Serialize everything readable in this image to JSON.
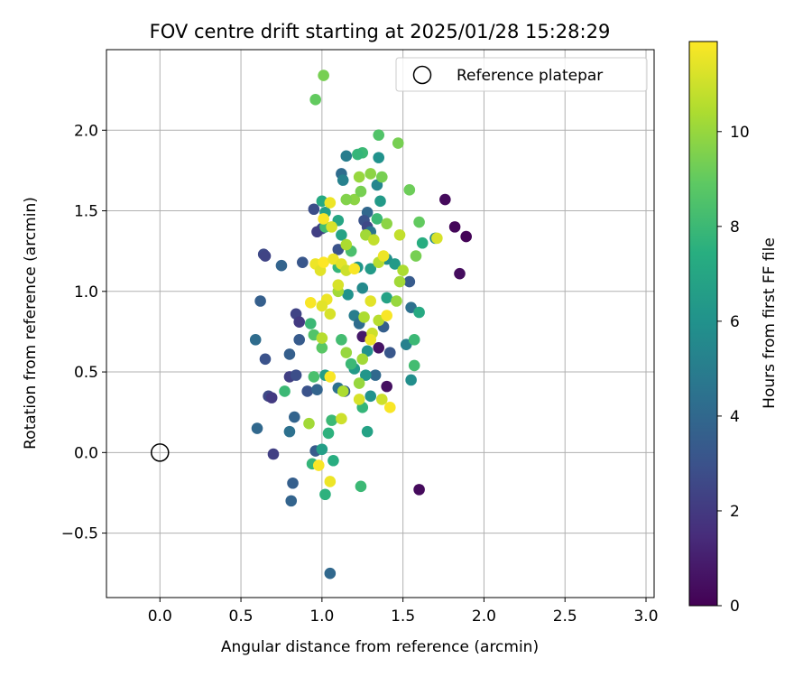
{
  "chart_data": {
    "type": "scatter",
    "title": "FOV centre drift starting at 2025/01/28 15:28:29",
    "xlabel": "Angular distance from reference (arcmin)",
    "ylabel": "Rotation from reference (arcmin)",
    "xlim": [
      -0.33,
      3.05
    ],
    "ylim": [
      -0.9,
      2.5
    ],
    "xticks": [
      0.0,
      0.5,
      1.0,
      1.5,
      2.0,
      2.5,
      3.0
    ],
    "xtick_labels": [
      "0.0",
      "0.5",
      "1.0",
      "1.5",
      "2.0",
      "2.5",
      "3.0"
    ],
    "yticks": [
      -0.5,
      0.0,
      0.5,
      1.0,
      1.5,
      2.0
    ],
    "ytick_labels": [
      "−0.5",
      "0.0",
      "0.5",
      "1.0",
      "1.5",
      "2.0"
    ],
    "grid": true,
    "legend": {
      "position": "upper-right",
      "entries": [
        "Reference platepar"
      ]
    },
    "reference_point": {
      "name": "Reference platepar",
      "x": 0.0,
      "y": 0.0,
      "marker": "open-circle"
    },
    "colorbar": {
      "label": "Hours from first FF file",
      "colormap": "viridis",
      "range": [
        0,
        11.9
      ],
      "ticks": [
        0,
        2,
        4,
        6,
        8,
        10
      ],
      "tick_labels": [
        "0",
        "2",
        "4",
        "6",
        "8",
        "10"
      ]
    },
    "series": [
      {
        "color_by": "hours",
        "points": [
          {
            "x": 1.76,
            "y": 1.57,
            "h": 0.3
          },
          {
            "x": 1.82,
            "y": 1.4,
            "h": 0.2
          },
          {
            "x": 1.89,
            "y": 1.34,
            "h": 0.1
          },
          {
            "x": 1.85,
            "y": 1.11,
            "h": 0.4
          },
          {
            "x": 1.6,
            "y": -0.23,
            "h": 0.3
          },
          {
            "x": 1.4,
            "y": 0.41,
            "h": 0.5
          },
          {
            "x": 1.35,
            "y": 0.65,
            "h": 0.6
          },
          {
            "x": 1.25,
            "y": 0.72,
            "h": 0.8
          },
          {
            "x": 0.95,
            "y": 1.51,
            "h": 2.8
          },
          {
            "x": 1.0,
            "y": 1.39,
            "h": 2.5
          },
          {
            "x": 0.97,
            "y": 1.37,
            "h": 2.2
          },
          {
            "x": 1.1,
            "y": 1.26,
            "h": 3.0
          },
          {
            "x": 0.64,
            "y": 1.23,
            "h": 2.6
          },
          {
            "x": 0.65,
            "y": 1.22,
            "h": 2.4
          },
          {
            "x": 0.75,
            "y": 1.16,
            "h": 3.8
          },
          {
            "x": 0.88,
            "y": 1.18,
            "h": 3.2
          },
          {
            "x": 0.62,
            "y": 0.94,
            "h": 3.6
          },
          {
            "x": 0.84,
            "y": 0.86,
            "h": 2.4
          },
          {
            "x": 0.86,
            "y": 0.81,
            "h": 2.0
          },
          {
            "x": 0.59,
            "y": 0.7,
            "h": 4.2
          },
          {
            "x": 0.65,
            "y": 0.58,
            "h": 3.0
          },
          {
            "x": 0.8,
            "y": 0.61,
            "h": 3.6
          },
          {
            "x": 0.86,
            "y": 0.7,
            "h": 3.4
          },
          {
            "x": 0.8,
            "y": 0.47,
            "h": 2.2
          },
          {
            "x": 0.84,
            "y": 0.48,
            "h": 2.8
          },
          {
            "x": 0.91,
            "y": 0.38,
            "h": 3.0
          },
          {
            "x": 0.97,
            "y": 0.39,
            "h": 3.8
          },
          {
            "x": 0.67,
            "y": 0.35,
            "h": 2.6
          },
          {
            "x": 0.69,
            "y": 0.34,
            "h": 2.0
          },
          {
            "x": 0.6,
            "y": 0.15,
            "h": 4.0
          },
          {
            "x": 0.8,
            "y": 0.13,
            "h": 4.4
          },
          {
            "x": 0.83,
            "y": 0.22,
            "h": 3.8
          },
          {
            "x": 0.7,
            "y": -0.01,
            "h": 2.2
          },
          {
            "x": 0.96,
            "y": 0.01,
            "h": 3.4
          },
          {
            "x": 0.82,
            "y": -0.19,
            "h": 3.6
          },
          {
            "x": 0.81,
            "y": -0.3,
            "h": 3.8
          },
          {
            "x": 1.05,
            "y": -0.75,
            "h": 4.0
          },
          {
            "x": 1.28,
            "y": 1.49,
            "h": 4.0
          },
          {
            "x": 1.26,
            "y": 1.44,
            "h": 3.0
          },
          {
            "x": 1.28,
            "y": 1.4,
            "h": 2.6
          },
          {
            "x": 1.3,
            "y": 1.37,
            "h": 4.6
          },
          {
            "x": 1.15,
            "y": 1.84,
            "h": 5.0
          },
          {
            "x": 1.12,
            "y": 1.73,
            "h": 4.2
          },
          {
            "x": 1.13,
            "y": 1.69,
            "h": 5.2
          },
          {
            "x": 1.34,
            "y": 1.66,
            "h": 5.4
          },
          {
            "x": 1.54,
            "y": 1.06,
            "h": 3.4
          },
          {
            "x": 1.38,
            "y": 0.78,
            "h": 3.6
          },
          {
            "x": 1.42,
            "y": 0.62,
            "h": 3.2
          },
          {
            "x": 1.33,
            "y": 0.48,
            "h": 4.0
          },
          {
            "x": 1.1,
            "y": 0.4,
            "h": 4.4
          },
          {
            "x": 1.14,
            "y": 0.38,
            "h": 3.6
          },
          {
            "x": 1.55,
            "y": 0.9,
            "h": 4.4
          },
          {
            "x": 1.2,
            "y": 0.85,
            "h": 5.0
          },
          {
            "x": 1.23,
            "y": 0.8,
            "h": 4.2
          },
          {
            "x": 1.35,
            "y": 1.83,
            "h": 6.0
          },
          {
            "x": 1.02,
            "y": 1.49,
            "h": 6.6
          },
          {
            "x": 1.0,
            "y": 1.56,
            "h": 7.2
          },
          {
            "x": 1.36,
            "y": 1.56,
            "h": 6.4
          },
          {
            "x": 1.1,
            "y": 1.44,
            "h": 7.0
          },
          {
            "x": 1.12,
            "y": 1.35,
            "h": 6.8
          },
          {
            "x": 1.22,
            "y": 1.15,
            "h": 6.2
          },
          {
            "x": 1.3,
            "y": 1.14,
            "h": 6.4
          },
          {
            "x": 1.4,
            "y": 1.2,
            "h": 5.8
          },
          {
            "x": 1.45,
            "y": 1.17,
            "h": 6.4
          },
          {
            "x": 1.25,
            "y": 1.02,
            "h": 5.6
          },
          {
            "x": 1.16,
            "y": 0.98,
            "h": 6.0
          },
          {
            "x": 1.4,
            "y": 0.96,
            "h": 6.8
          },
          {
            "x": 1.52,
            "y": 0.67,
            "h": 5.2
          },
          {
            "x": 1.28,
            "y": 0.63,
            "h": 6.0
          },
          {
            "x": 1.2,
            "y": 0.52,
            "h": 6.4
          },
          {
            "x": 1.27,
            "y": 0.48,
            "h": 6.2
          },
          {
            "x": 1.55,
            "y": 0.45,
            "h": 5.8
          },
          {
            "x": 1.3,
            "y": 0.35,
            "h": 6.0
          },
          {
            "x": 1.02,
            "y": 0.48,
            "h": 6.6
          },
          {
            "x": 1.62,
            "y": 1.3,
            "h": 7.4
          },
          {
            "x": 1.7,
            "y": 1.33,
            "h": 5.6
          },
          {
            "x": 1.6,
            "y": 0.87,
            "h": 7.2
          },
          {
            "x": 1.0,
            "y": 0.02,
            "h": 6.6
          },
          {
            "x": 1.28,
            "y": 0.13,
            "h": 6.8
          },
          {
            "x": 1.04,
            "y": 0.12,
            "h": 7.6
          },
          {
            "x": 1.25,
            "y": 1.86,
            "h": 8.0
          },
          {
            "x": 1.22,
            "y": 1.85,
            "h": 7.8
          },
          {
            "x": 1.02,
            "y": 1.4,
            "h": 8.2
          },
          {
            "x": 1.34,
            "y": 1.45,
            "h": 8.0
          },
          {
            "x": 1.18,
            "y": 1.25,
            "h": 8.4
          },
          {
            "x": 1.1,
            "y": 1.15,
            "h": 7.8
          },
          {
            "x": 1.12,
            "y": 0.7,
            "h": 8.2
          },
          {
            "x": 0.93,
            "y": 0.8,
            "h": 8.0
          },
          {
            "x": 0.95,
            "y": 0.73,
            "h": 8.6
          },
          {
            "x": 1.0,
            "y": 0.65,
            "h": 8.8
          },
          {
            "x": 1.18,
            "y": 0.55,
            "h": 8.0
          },
          {
            "x": 0.95,
            "y": 0.47,
            "h": 8.4
          },
          {
            "x": 0.77,
            "y": 0.38,
            "h": 8.0
          },
          {
            "x": 1.25,
            "y": 0.28,
            "h": 7.8
          },
          {
            "x": 1.24,
            "y": -0.21,
            "h": 8.0
          },
          {
            "x": 1.02,
            "y": -0.26,
            "h": 7.6
          },
          {
            "x": 0.94,
            "y": -0.07,
            "h": 7.8
          },
          {
            "x": 1.06,
            "y": 0.2,
            "h": 8.0
          },
          {
            "x": 1.07,
            "y": -0.05,
            "h": 7.4
          },
          {
            "x": 1.57,
            "y": 0.54,
            "h": 8.2
          },
          {
            "x": 1.57,
            "y": 0.7,
            "h": 8.0
          },
          {
            "x": 1.35,
            "y": 1.97,
            "h": 8.6
          },
          {
            "x": 1.47,
            "y": 1.92,
            "h": 9.4
          },
          {
            "x": 1.54,
            "y": 1.63,
            "h": 9.2
          },
          {
            "x": 1.6,
            "y": 1.43,
            "h": 9.0
          },
          {
            "x": 1.58,
            "y": 1.22,
            "h": 9.4
          },
          {
            "x": 1.01,
            "y": 2.34,
            "h": 9.4
          },
          {
            "x": 0.96,
            "y": 2.19,
            "h": 9.0
          },
          {
            "x": 1.3,
            "y": 1.73,
            "h": 9.8
          },
          {
            "x": 1.37,
            "y": 1.71,
            "h": 9.4
          },
          {
            "x": 1.23,
            "y": 1.71,
            "h": 10.0
          },
          {
            "x": 1.2,
            "y": 1.57,
            "h": 9.8
          },
          {
            "x": 1.24,
            "y": 1.62,
            "h": 9.4
          },
          {
            "x": 1.15,
            "y": 1.57,
            "h": 9.6
          },
          {
            "x": 1.27,
            "y": 1.35,
            "h": 10.2
          },
          {
            "x": 1.15,
            "y": 1.29,
            "h": 10.4
          },
          {
            "x": 1.32,
            "y": 1.32,
            "h": 10.8
          },
          {
            "x": 1.48,
            "y": 1.06,
            "h": 10.2
          },
          {
            "x": 1.5,
            "y": 1.13,
            "h": 10.4
          },
          {
            "x": 1.35,
            "y": 1.18,
            "h": 10.6
          },
          {
            "x": 1.48,
            "y": 1.35,
            "h": 10.8
          },
          {
            "x": 1.4,
            "y": 1.42,
            "h": 9.8
          },
          {
            "x": 1.1,
            "y": 1.0,
            "h": 10.2
          },
          {
            "x": 1.26,
            "y": 0.84,
            "h": 10.4
          },
          {
            "x": 1.35,
            "y": 0.82,
            "h": 10.6
          },
          {
            "x": 1.46,
            "y": 0.94,
            "h": 10.0
          },
          {
            "x": 1.31,
            "y": 0.74,
            "h": 11.0
          },
          {
            "x": 1.25,
            "y": 0.58,
            "h": 10.2
          },
          {
            "x": 1.15,
            "y": 0.62,
            "h": 10.0
          },
          {
            "x": 1.13,
            "y": 0.38,
            "h": 10.4
          },
          {
            "x": 1.23,
            "y": 0.43,
            "h": 10.0
          },
          {
            "x": 1.0,
            "y": 0.71,
            "h": 10.6
          },
          {
            "x": 0.92,
            "y": 0.18,
            "h": 10.2
          },
          {
            "x": 1.12,
            "y": 0.21,
            "h": 11.0
          },
          {
            "x": 1.05,
            "y": 1.55,
            "h": 11.6
          },
          {
            "x": 1.01,
            "y": 1.45,
            "h": 11.8
          },
          {
            "x": 1.06,
            "y": 1.4,
            "h": 11.2
          },
          {
            "x": 0.96,
            "y": 1.17,
            "h": 11.6
          },
          {
            "x": 0.99,
            "y": 1.13,
            "h": 11.4
          },
          {
            "x": 1.01,
            "y": 1.18,
            "h": 11.9
          },
          {
            "x": 1.07,
            "y": 1.2,
            "h": 11.6
          },
          {
            "x": 1.12,
            "y": 1.17,
            "h": 11.4
          },
          {
            "x": 1.15,
            "y": 1.13,
            "h": 11.0
          },
          {
            "x": 1.2,
            "y": 1.14,
            "h": 11.8
          },
          {
            "x": 1.1,
            "y": 1.04,
            "h": 11.2
          },
          {
            "x": 1.03,
            "y": 0.95,
            "h": 11.6
          },
          {
            "x": 1.0,
            "y": 0.91,
            "h": 11.4
          },
          {
            "x": 0.93,
            "y": 0.93,
            "h": 11.8
          },
          {
            "x": 1.05,
            "y": 0.86,
            "h": 11.2
          },
          {
            "x": 1.38,
            "y": 1.22,
            "h": 11.6
          },
          {
            "x": 1.3,
            "y": 0.94,
            "h": 11.4
          },
          {
            "x": 1.4,
            "y": 0.85,
            "h": 11.8
          },
          {
            "x": 1.3,
            "y": 0.7,
            "h": 11.6
          },
          {
            "x": 1.05,
            "y": 0.47,
            "h": 11.8
          },
          {
            "x": 1.23,
            "y": 0.33,
            "h": 11.2
          },
          {
            "x": 1.37,
            "y": 0.33,
            "h": 11.0
          },
          {
            "x": 1.42,
            "y": 0.28,
            "h": 11.8
          },
          {
            "x": 1.71,
            "y": 1.33,
            "h": 11.2
          },
          {
            "x": 0.98,
            "y": -0.08,
            "h": 11.8
          },
          {
            "x": 1.05,
            "y": -0.18,
            "h": 11.6
          }
        ]
      }
    ]
  }
}
